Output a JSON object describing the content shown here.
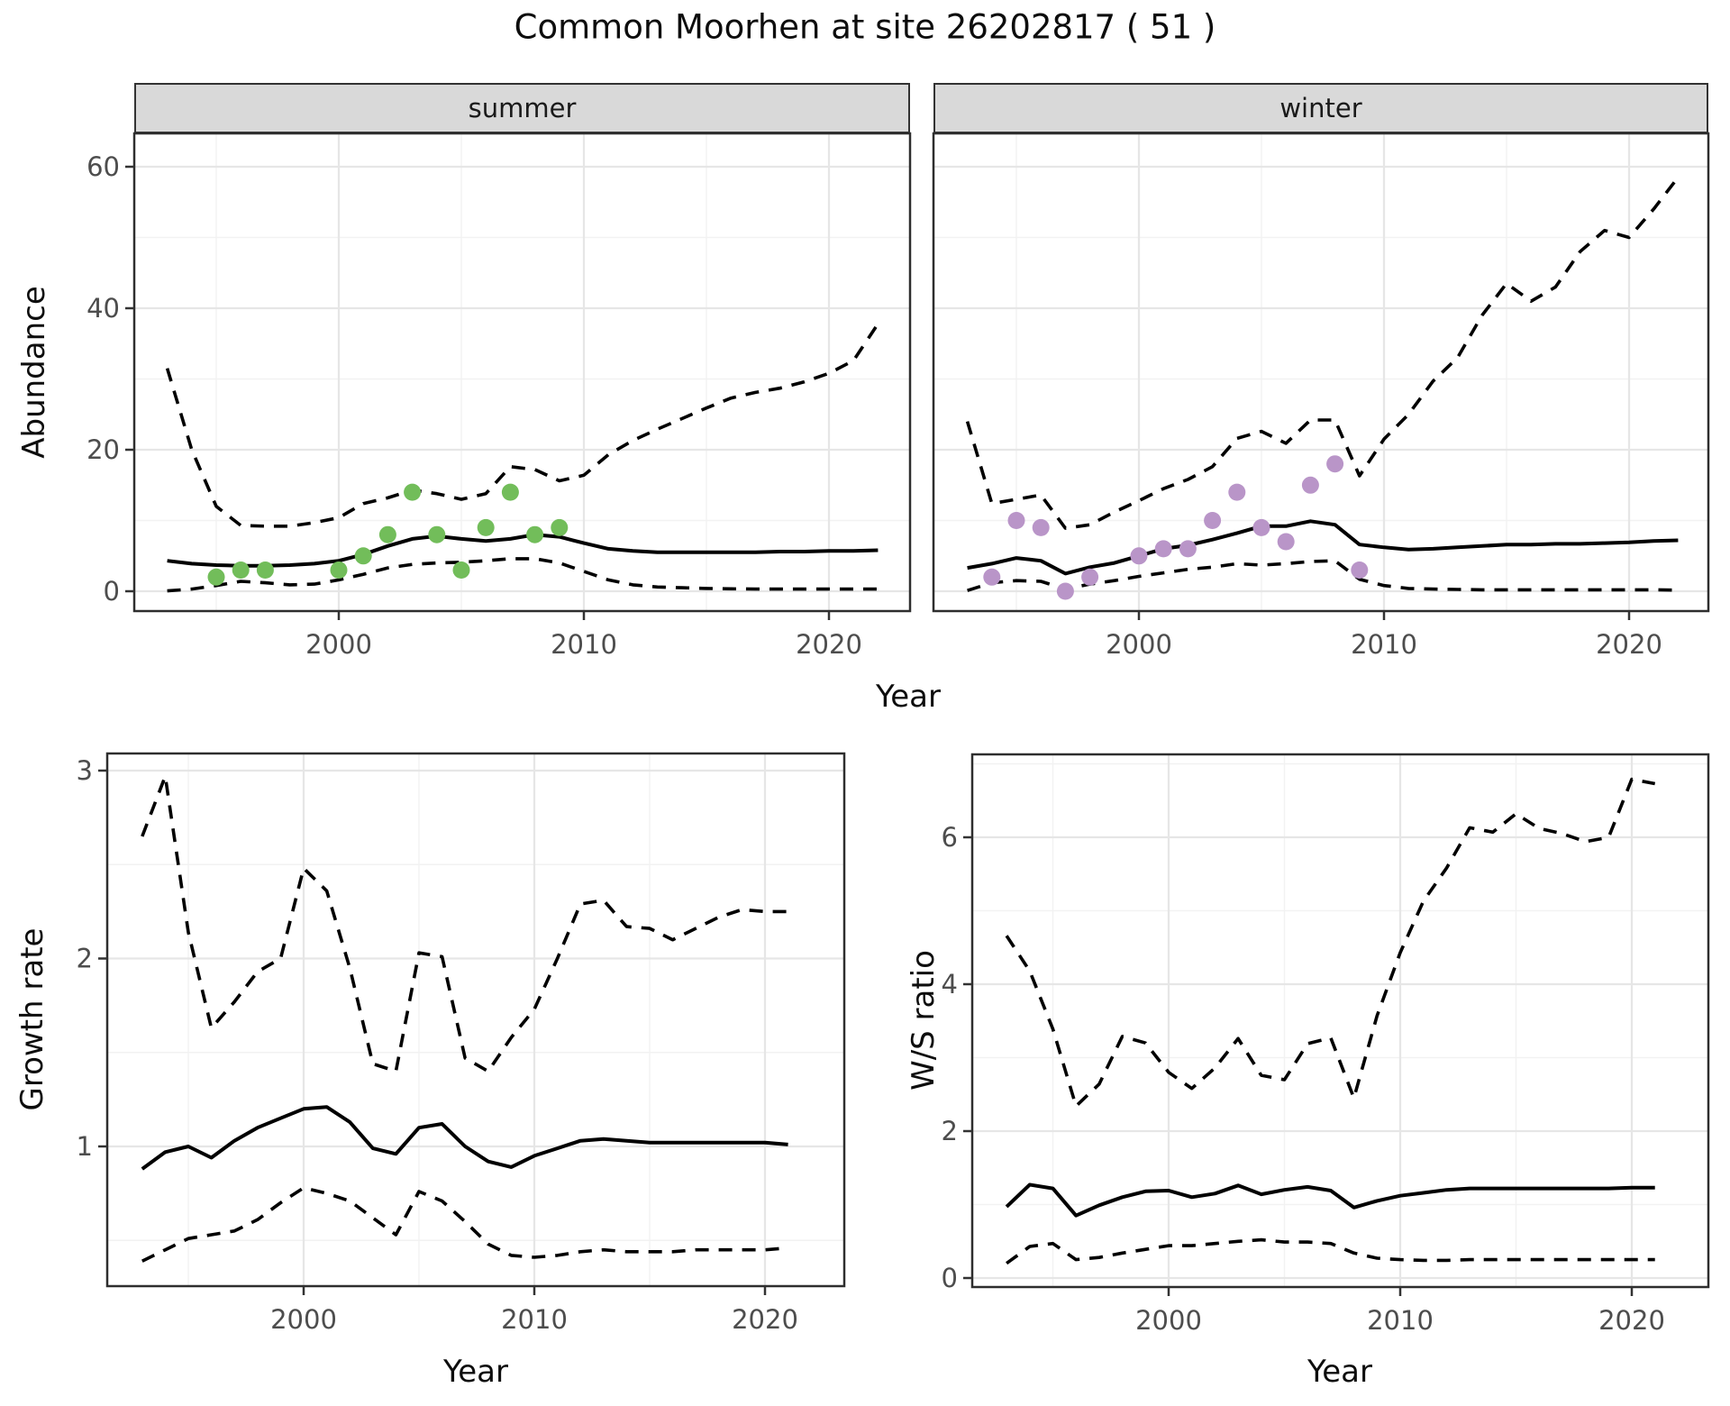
{
  "title": "Common Moorhen at site 26202817 ( 51 )",
  "colors": {
    "estimate_line": "#000000",
    "ci_line": "#000000",
    "summer_point": "#72bd5a",
    "winter_point": "#b995c8",
    "strip_bg": "#d9d9d9",
    "grid_major": "#e6e6e6",
    "grid_minor": "#f2f2f2",
    "panel_border": "#2e2e2e",
    "tick_text": "#4d4d4d",
    "title_text": "#0d0d0d"
  },
  "chart_data": [
    {
      "id": "abundance-summer",
      "type": "line",
      "facet_label": "summer",
      "xlabel": "Year",
      "ylabel": "Abundance",
      "xticks": [
        2000,
        2010,
        2020
      ],
      "yticks": [
        0,
        20,
        40,
        60
      ],
      "xlim": [
        1991.6,
        2023.3
      ],
      "ylim": [
        -2.8,
        64.7
      ],
      "x": [
        1993,
        1994,
        1995,
        1996,
        1997,
        1998,
        1999,
        2000,
        2001,
        2002,
        2003,
        2004,
        2005,
        2006,
        2007,
        2008,
        2009,
        2010,
        2011,
        2012,
        2013,
        2014,
        2015,
        2016,
        2017,
        2018,
        2019,
        2020,
        2021,
        2022
      ],
      "series": [
        {
          "name": "estimate",
          "style": "solid",
          "values": [
            4.3,
            3.9,
            3.7,
            3.6,
            3.6,
            3.7,
            3.9,
            4.3,
            5.2,
            6.4,
            7.4,
            7.8,
            7.4,
            7.1,
            7.4,
            8.0,
            7.7,
            6.8,
            6.0,
            5.7,
            5.5,
            5.5,
            5.5,
            5.5,
            5.5,
            5.6,
            5.6,
            5.7,
            5.7,
            5.8
          ]
        },
        {
          "name": "upper_95ci",
          "style": "dashed",
          "values": [
            31.5,
            20,
            12,
            9.3,
            9.2,
            9.2,
            9.7,
            10.4,
            12.4,
            13.2,
            14.3,
            13.8,
            13.0,
            13.8,
            17.6,
            17.2,
            15.6,
            16.4,
            19.3,
            21.3,
            22.9,
            24.4,
            25.9,
            27.3,
            28.1,
            28.7,
            29.6,
            30.8,
            32.6,
            37.8
          ]
        },
        {
          "name": "lower_95ci",
          "style": "dashed",
          "values": [
            0.05,
            0.3,
            0.8,
            1.4,
            1.2,
            0.9,
            1.0,
            1.6,
            2.4,
            3.3,
            3.8,
            4.0,
            4.1,
            4.3,
            4.6,
            4.6,
            4.0,
            2.8,
            1.6,
            0.9,
            0.6,
            0.5,
            0.4,
            0.35,
            0.3,
            0.3,
            0.3,
            0.3,
            0.3,
            0.3
          ]
        }
      ],
      "points": {
        "name": "observed_count",
        "color_key": "summer_point",
        "x": [
          1995,
          1996,
          1997,
          2000,
          2001,
          2002,
          2003,
          2004,
          2005,
          2006,
          2007,
          2008,
          2009
        ],
        "y": [
          2,
          3,
          3,
          3,
          5,
          8,
          14,
          8,
          3,
          9,
          14,
          8,
          9
        ]
      }
    },
    {
      "id": "abundance-winter",
      "type": "line",
      "facet_label": "winter",
      "xlabel": "Year",
      "ylabel": "Abundance",
      "xticks": [
        2000,
        2010,
        2020
      ],
      "yticks": [
        0,
        20,
        40,
        60
      ],
      "xlim": [
        1991.6,
        2023.2
      ],
      "ylim": [
        -2.8,
        64.7
      ],
      "x": [
        1993,
        1994,
        1995,
        1996,
        1997,
        1998,
        1999,
        2000,
        2001,
        2002,
        2003,
        2004,
        2005,
        2006,
        2007,
        2008,
        2009,
        2010,
        2011,
        2012,
        2013,
        2014,
        2015,
        2016,
        2017,
        2018,
        2019,
        2020,
        2021,
        2022
      ],
      "series": [
        {
          "name": "estimate",
          "style": "solid",
          "values": [
            3.3,
            3.9,
            4.7,
            4.3,
            2.5,
            3.4,
            4.0,
            5.0,
            6.0,
            6.5,
            7.3,
            8.2,
            9.2,
            9.2,
            9.9,
            9.4,
            6.6,
            6.2,
            5.9,
            6.0,
            6.2,
            6.4,
            6.6,
            6.6,
            6.7,
            6.7,
            6.8,
            6.9,
            7.1,
            7.2
          ]
        },
        {
          "name": "upper_95ci",
          "style": "dashed",
          "values": [
            24,
            12.4,
            13,
            13.6,
            8.9,
            9.4,
            11.2,
            12.8,
            14.5,
            15.8,
            17.6,
            21.6,
            22.6,
            20.9,
            24.2,
            24.2,
            16.3,
            21.5,
            25,
            29.7,
            33,
            39,
            43.5,
            41,
            43,
            48,
            51,
            50,
            54,
            58.5
          ]
        },
        {
          "name": "lower_95ci",
          "style": "dashed",
          "values": [
            0.1,
            1.2,
            1.5,
            1.4,
            0.3,
            1.0,
            1.5,
            2.1,
            2.6,
            3.1,
            3.4,
            3.9,
            3.7,
            3.9,
            4.2,
            4.3,
            1.7,
            0.8,
            0.4,
            0.3,
            0.25,
            0.2,
            0.2,
            0.2,
            0.2,
            0.2,
            0.2,
            0.2,
            0.2,
            0.15
          ]
        }
      ],
      "points": {
        "name": "observed_count",
        "color_key": "winter_point",
        "x": [
          1994,
          1995,
          1996,
          1997,
          1998,
          2000,
          2001,
          2002,
          2003,
          2004,
          2005,
          2006,
          2007,
          2008,
          2009
        ],
        "y": [
          2,
          10,
          9,
          0,
          2,
          5,
          6,
          6,
          10,
          14,
          9,
          7,
          15,
          18,
          3
        ]
      }
    },
    {
      "id": "growth-rate",
      "type": "line",
      "facet_label": "",
      "xlabel": "Year",
      "ylabel": "Growth rate",
      "xticks": [
        2000,
        2010,
        2020
      ],
      "yticks": [
        1,
        2,
        3
      ],
      "xlim": [
        1991.5,
        2023.4
      ],
      "ylim": [
        0.26,
        3.09
      ],
      "x": [
        1993,
        1994,
        1995,
        1996,
        1997,
        1998,
        1999,
        2000,
        2001,
        2002,
        2003,
        2004,
        2005,
        2006,
        2007,
        2008,
        2009,
        2010,
        2011,
        2012,
        2013,
        2014,
        2015,
        2016,
        2017,
        2018,
        2019,
        2020,
        2021
      ],
      "series": [
        {
          "name": "estimate",
          "style": "solid",
          "values": [
            0.88,
            0.97,
            1.0,
            0.94,
            1.03,
            1.1,
            1.15,
            1.2,
            1.21,
            1.13,
            0.99,
            0.96,
            1.1,
            1.12,
            1.0,
            0.92,
            0.89,
            0.95,
            0.99,
            1.03,
            1.04,
            1.03,
            1.02,
            1.02,
            1.02,
            1.02,
            1.02,
            1.02,
            1.01
          ]
        },
        {
          "name": "upper_95ci",
          "style": "dashed",
          "values": [
            2.65,
            2.97,
            2.14,
            1.63,
            1.77,
            1.93,
            2.0,
            2.48,
            2.36,
            1.95,
            1.44,
            1.4,
            2.03,
            2.01,
            1.47,
            1.4,
            1.58,
            1.73,
            2.0,
            2.29,
            2.31,
            2.17,
            2.16,
            2.1,
            2.16,
            2.22,
            2.26,
            2.25,
            2.25
          ]
        },
        {
          "name": "lower_95ci",
          "style": "dashed",
          "values": [
            0.39,
            0.45,
            0.51,
            0.53,
            0.55,
            0.61,
            0.7,
            0.78,
            0.75,
            0.71,
            0.62,
            0.53,
            0.76,
            0.71,
            0.6,
            0.48,
            0.42,
            0.41,
            0.42,
            0.44,
            0.45,
            0.44,
            0.44,
            0.44,
            0.45,
            0.45,
            0.45,
            0.45,
            0.46
          ]
        }
      ],
      "points": {
        "name": "observed_count",
        "color_key": "summer_point",
        "x": [],
        "y": []
      }
    },
    {
      "id": "ws-ratio",
      "type": "line",
      "facet_label": "",
      "xlabel": "Year",
      "ylabel": "W/S ratio",
      "xticks": [
        2000,
        2010,
        2020
      ],
      "yticks": [
        0,
        2,
        4,
        6
      ],
      "xlim": [
        1991.5,
        2023.3
      ],
      "ylim": [
        -0.12,
        7.13
      ],
      "x": [
        1993,
        1994,
        1995,
        1996,
        1997,
        1998,
        1999,
        2000,
        2001,
        2002,
        2003,
        2004,
        2005,
        2006,
        2007,
        2008,
        2009,
        2010,
        2011,
        2012,
        2013,
        2014,
        2015,
        2016,
        2017,
        2018,
        2019,
        2020,
        2021
      ],
      "series": [
        {
          "name": "estimate",
          "style": "solid",
          "values": [
            0.97,
            1.27,
            1.22,
            0.85,
            0.99,
            1.1,
            1.18,
            1.19,
            1.1,
            1.15,
            1.26,
            1.14,
            1.2,
            1.24,
            1.19,
            0.96,
            1.05,
            1.12,
            1.16,
            1.2,
            1.22,
            1.22,
            1.22,
            1.22,
            1.22,
            1.22,
            1.22,
            1.23,
            1.23
          ]
        },
        {
          "name": "upper_95ci",
          "style": "dashed",
          "values": [
            4.66,
            4.18,
            3.39,
            2.34,
            2.64,
            3.29,
            3.2,
            2.8,
            2.58,
            2.86,
            3.26,
            2.76,
            2.7,
            3.19,
            3.27,
            2.45,
            3.57,
            4.43,
            5.13,
            5.58,
            6.13,
            6.07,
            6.32,
            6.12,
            6.05,
            5.94,
            6.0,
            6.79,
            6.73
          ]
        },
        {
          "name": "lower_95ci",
          "style": "dashed",
          "values": [
            0.2,
            0.43,
            0.47,
            0.25,
            0.28,
            0.34,
            0.39,
            0.44,
            0.44,
            0.47,
            0.5,
            0.52,
            0.49,
            0.49,
            0.47,
            0.34,
            0.27,
            0.25,
            0.24,
            0.24,
            0.25,
            0.25,
            0.25,
            0.25,
            0.25,
            0.25,
            0.25,
            0.25,
            0.25
          ]
        }
      ],
      "points": {
        "name": "observed_count",
        "color_key": "winter_point",
        "x": [],
        "y": []
      }
    }
  ]
}
